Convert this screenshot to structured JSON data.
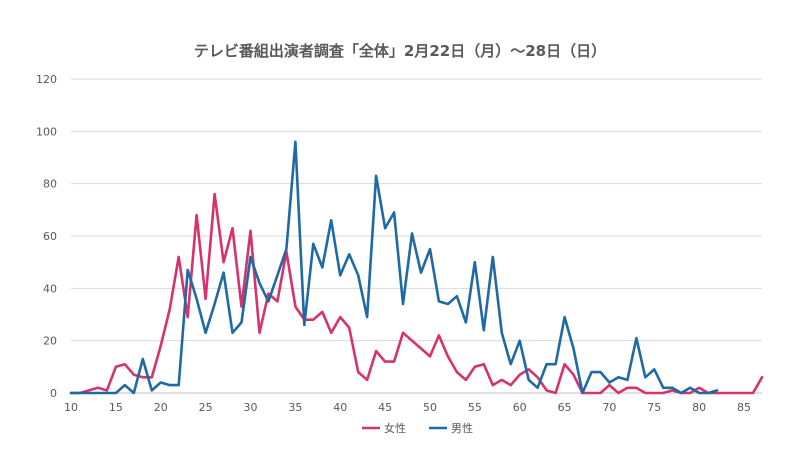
{
  "chart_data": {
    "type": "line",
    "title": "テレビ番組出演者調査「全体」2月22日（月）〜28日（日）",
    "xlabel": "",
    "ylabel": "",
    "xlim": [
      10,
      87
    ],
    "ylim": [
      0,
      120
    ],
    "x_ticks": [
      10,
      15,
      20,
      25,
      30,
      35,
      40,
      45,
      50,
      55,
      60,
      65,
      70,
      75,
      80,
      85
    ],
    "y_ticks": [
      0,
      20,
      40,
      60,
      80,
      100,
      120
    ],
    "grid": true,
    "legend_position": "bottom",
    "series": [
      {
        "name": "女性",
        "color": "#d6336c",
        "x": [
          10,
          11,
          12,
          13,
          14,
          15,
          16,
          17,
          18,
          19,
          20,
          21,
          22,
          23,
          24,
          25,
          26,
          27,
          28,
          29,
          30,
          31,
          32,
          33,
          34,
          35,
          36,
          37,
          38,
          39,
          40,
          41,
          42,
          43,
          44,
          45,
          46,
          47,
          48,
          49,
          50,
          51,
          52,
          53,
          54,
          55,
          56,
          57,
          58,
          59,
          60,
          61,
          62,
          63,
          64,
          65,
          66,
          67,
          68,
          69,
          70,
          71,
          72,
          73,
          74,
          75,
          76,
          77,
          78,
          79,
          80,
          81,
          82,
          83,
          84,
          85,
          86,
          87
        ],
        "values": [
          0,
          0,
          1,
          2,
          1,
          10,
          11,
          7,
          6,
          6,
          18,
          32,
          52,
          29,
          68,
          36,
          76,
          50,
          63,
          33,
          62,
          23,
          38,
          35,
          54,
          33,
          28,
          28,
          31,
          23,
          29,
          25,
          8,
          5,
          16,
          12,
          12,
          23,
          20,
          17,
          14,
          22,
          14,
          8,
          5,
          10,
          11,
          3,
          5,
          3,
          7,
          9,
          6,
          1,
          0,
          11,
          7,
          0,
          0,
          0,
          3,
          0,
          2,
          2,
          0,
          0,
          0,
          1,
          0,
          0,
          2,
          0,
          0,
          0,
          0,
          0,
          0,
          6
        ]
      },
      {
        "name": "男性",
        "color": "#1f6aa5",
        "x": [
          10,
          11,
          12,
          13,
          14,
          15,
          16,
          17,
          18,
          19,
          20,
          21,
          22,
          23,
          24,
          25,
          26,
          27,
          28,
          29,
          30,
          31,
          32,
          33,
          34,
          35,
          36,
          37,
          38,
          39,
          40,
          41,
          42,
          43,
          44,
          45,
          46,
          47,
          48,
          49,
          50,
          51,
          52,
          53,
          54,
          55,
          56,
          57,
          58,
          59,
          60,
          61,
          62,
          63,
          64,
          65,
          66,
          67,
          68,
          69,
          70,
          71,
          72,
          73,
          74,
          75,
          76,
          77,
          78,
          79,
          80,
          81,
          82
        ],
        "values": [
          0,
          0,
          0,
          0,
          0,
          0,
          3,
          0,
          13,
          1,
          4,
          3,
          3,
          47,
          36,
          23,
          34,
          46,
          23,
          27,
          52,
          42,
          35,
          45,
          55,
          96,
          26,
          57,
          48,
          66,
          45,
          53,
          45,
          29,
          83,
          63,
          69,
          34,
          61,
          46,
          55,
          35,
          34,
          37,
          27,
          50,
          24,
          52,
          23,
          11,
          20,
          5,
          2,
          11,
          11,
          29,
          17,
          0,
          8,
          8,
          4,
          6,
          5,
          21,
          6,
          9,
          2,
          2,
          0,
          2,
          0,
          0,
          1
        ]
      }
    ]
  }
}
